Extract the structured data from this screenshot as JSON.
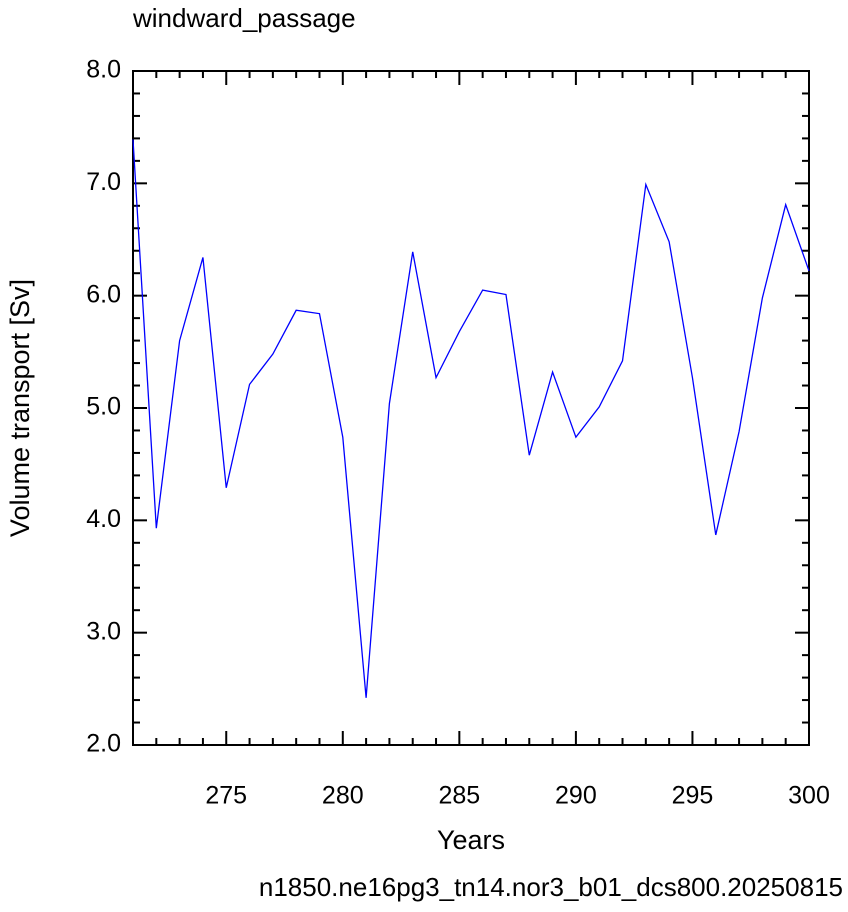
{
  "chart_data": {
    "type": "line",
    "title": "windward_passage",
    "x_label": "Years",
    "y_label": "Volume transport [Sv]",
    "footer": "n1850.ne16pg3_tn14.nor3_b01_dcs800.20250815",
    "x": [
      271,
      272,
      273,
      274,
      275,
      276,
      277,
      278,
      279,
      280,
      281,
      282,
      283,
      284,
      285,
      286,
      287,
      288,
      289,
      290,
      291,
      292,
      293,
      294,
      295,
      296,
      297,
      298,
      299,
      300
    ],
    "series": [
      {
        "name": "windward_passage",
        "color": "#0000ff",
        "values": [
          7.39,
          3.93,
          5.6,
          6.34,
          4.29,
          5.21,
          5.48,
          5.87,
          5.84,
          4.74,
          2.42,
          5.04,
          6.39,
          5.27,
          5.68,
          6.05,
          6.01,
          4.58,
          5.32,
          4.74,
          5.01,
          5.42,
          6.99,
          6.48,
          5.27,
          3.87,
          4.79,
          5.98,
          6.81,
          6.22
        ]
      }
    ],
    "xlim": [
      271,
      300
    ],
    "ylim": [
      2.0,
      8.0
    ],
    "xticks": [
      275,
      280,
      285,
      290,
      295,
      300
    ],
    "yticks": [
      {
        "value": 2,
        "label": "2.0"
      },
      {
        "value": 3,
        "label": "3.0"
      },
      {
        "value": 4,
        "label": "4.0"
      },
      {
        "value": 5,
        "label": "5.0"
      },
      {
        "value": 6,
        "label": "6.0"
      },
      {
        "value": 7,
        "label": "7.0"
      },
      {
        "value": 8,
        "label": "8.0"
      }
    ],
    "xticks_minor": [
      272,
      273,
      274,
      276,
      277,
      278,
      279,
      281,
      282,
      283,
      284,
      286,
      287,
      288,
      289,
      291,
      292,
      293,
      294,
      296,
      297,
      298,
      299
    ],
    "yticks_minor": [
      2.2,
      2.4,
      2.6,
      2.8,
      3.2,
      3.4,
      3.6,
      3.8,
      4.2,
      4.4,
      4.6,
      4.8,
      5.2,
      5.4,
      5.6,
      5.8,
      6.2,
      6.4,
      6.6,
      6.8,
      7.2,
      7.4,
      7.6,
      7.8
    ],
    "footer_color": "#0000ff"
  }
}
